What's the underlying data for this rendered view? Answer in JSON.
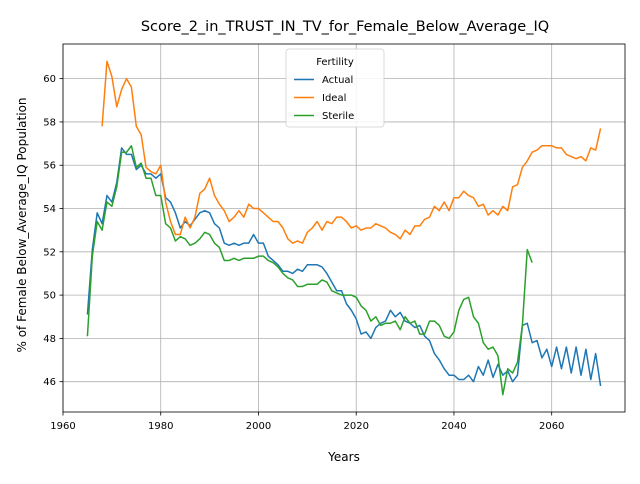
{
  "chart_data": {
    "type": "line",
    "title": "Score_2_in_TRUST_IN_TV_for_Female_Below_Average_IQ",
    "xlabel": "Years",
    "ylabel": "% of Female Below_Average_IQ Population",
    "xlim": [
      1960,
      2075
    ],
    "ylim": [
      44.6,
      61.6
    ],
    "xticks": [
      1960,
      1980,
      2000,
      2020,
      2040,
      2060
    ],
    "yticks": [
      46,
      48,
      50,
      52,
      54,
      56,
      58,
      60
    ],
    "grid": true,
    "legend": {
      "title": "Fertility",
      "position": "upper center"
    },
    "series": [
      {
        "name": "Actual",
        "color": "#1f77b4",
        "x": [
          1965,
          1966,
          1967,
          1968,
          1969,
          1970,
          1971,
          1972,
          1973,
          1974,
          1975,
          1976,
          1977,
          1978,
          1979,
          1980,
          1981,
          1982,
          1983,
          1984,
          1985,
          1986,
          1987,
          1988,
          1989,
          1990,
          1991,
          1992,
          1993,
          1994,
          1995,
          1996,
          1997,
          1998,
          1999,
          2000,
          2001,
          2002,
          2003,
          2004,
          2005,
          2006,
          2007,
          2008,
          2009,
          2010,
          2011,
          2012,
          2013,
          2014,
          2015,
          2016,
          2017,
          2018,
          2019,
          2020,
          2021,
          2022,
          2023,
          2024,
          2025,
          2026,
          2027,
          2028,
          2029,
          2030,
          2031,
          2032,
          2033,
          2034,
          2035,
          2036,
          2037,
          2038,
          2039,
          2040,
          2041,
          2042,
          2043,
          2044,
          2045,
          2046,
          2047,
          2048,
          2049,
          2050,
          2051,
          2052,
          2053,
          2054,
          2055,
          2056,
          2057,
          2058,
          2059,
          2060,
          2061,
          2062,
          2063,
          2064,
          2065,
          2066,
          2067,
          2068,
          2069,
          2070
        ],
        "y": [
          49.1,
          52.1,
          53.8,
          53.3,
          54.6,
          54.3,
          55.2,
          56.8,
          56.5,
          56.5,
          55.8,
          56.0,
          55.6,
          55.6,
          55.4,
          55.6,
          54.5,
          54.3,
          53.8,
          53.1,
          53.4,
          53.2,
          53.5,
          53.8,
          53.9,
          53.8,
          53.3,
          53.1,
          52.4,
          52.3,
          52.4,
          52.3,
          52.4,
          52.4,
          52.8,
          52.4,
          52.4,
          51.8,
          51.6,
          51.4,
          51.1,
          51.1,
          51.0,
          51.2,
          51.1,
          51.4,
          51.4,
          51.4,
          51.3,
          51.0,
          50.6,
          50.2,
          50.2,
          49.6,
          49.3,
          48.9,
          48.2,
          48.3,
          48.0,
          48.5,
          48.7,
          48.8,
          49.3,
          49.0,
          49.2,
          48.8,
          48.7,
          48.5,
          48.6,
          48.1,
          47.9,
          47.3,
          47.0,
          46.6,
          46.3,
          46.3,
          46.1,
          46.1,
          46.3,
          46.0,
          46.7,
          46.3,
          47.0,
          46.2,
          46.8,
          46.3,
          46.5,
          46.0,
          46.3,
          48.6,
          48.7,
          47.8,
          47.9,
          47.1,
          47.5,
          46.7,
          47.6,
          46.6,
          47.6,
          46.4,
          47.6,
          46.3,
          47.5,
          46.1,
          47.3,
          45.8
        ]
      },
      {
        "name": "Ideal",
        "color": "#ff7f0e",
        "x": [
          1968,
          1969,
          1970,
          1971,
          1972,
          1973,
          1974,
          1975,
          1976,
          1977,
          1978,
          1979,
          1980,
          1981,
          1982,
          1983,
          1984,
          1985,
          1986,
          1987,
          1988,
          1989,
          1990,
          1991,
          1992,
          1993,
          1994,
          1995,
          1996,
          1997,
          1998,
          1999,
          2000,
          2001,
          2002,
          2003,
          2004,
          2005,
          2006,
          2007,
          2008,
          2009,
          2010,
          2011,
          2012,
          2013,
          2014,
          2015,
          2016,
          2017,
          2018,
          2019,
          2020,
          2021,
          2022,
          2023,
          2024,
          2025,
          2026,
          2027,
          2028,
          2029,
          2030,
          2031,
          2032,
          2033,
          2034,
          2035,
          2036,
          2037,
          2038,
          2039,
          2040,
          2041,
          2042,
          2043,
          2044,
          2045,
          2046,
          2047,
          2048,
          2049,
          2050,
          2051,
          2052,
          2053,
          2054,
          2055,
          2056,
          2057,
          2058,
          2059,
          2060,
          2061,
          2062,
          2063,
          2064,
          2065,
          2066,
          2067,
          2068,
          2069,
          2070
        ],
        "y": [
          57.8,
          60.8,
          60.1,
          58.7,
          59.5,
          60.0,
          59.6,
          57.8,
          57.4,
          55.9,
          55.7,
          55.6,
          56.0,
          54.3,
          53.4,
          52.8,
          52.8,
          53.6,
          53.1,
          53.6,
          54.7,
          54.9,
          55.4,
          54.6,
          54.2,
          53.9,
          53.4,
          53.6,
          53.9,
          53.6,
          54.2,
          54.0,
          54.0,
          53.8,
          53.6,
          53.4,
          53.4,
          53.1,
          52.6,
          52.4,
          52.5,
          52.4,
          52.9,
          53.1,
          53.4,
          53.0,
          53.4,
          53.3,
          53.6,
          53.6,
          53.4,
          53.1,
          53.2,
          53.0,
          53.1,
          53.1,
          53.3,
          53.2,
          53.1,
          52.9,
          52.8,
          52.6,
          53.0,
          52.8,
          53.2,
          53.2,
          53.5,
          53.6,
          54.1,
          53.9,
          54.3,
          53.9,
          54.5,
          54.5,
          54.8,
          54.6,
          54.5,
          54.1,
          54.2,
          53.7,
          53.9,
          53.7,
          54.1,
          53.9,
          55.0,
          55.1,
          55.9,
          56.2,
          56.6,
          56.7,
          56.9,
          56.9,
          56.9,
          56.8,
          56.8,
          56.5,
          56.4,
          56.3,
          56.4,
          56.2,
          56.8,
          56.7,
          57.7
        ]
      },
      {
        "name": "Sterile",
        "color": "#2ca02c",
        "x": [
          1965,
          1966,
          1967,
          1968,
          1969,
          1970,
          1971,
          1972,
          1973,
          1974,
          1975,
          1976,
          1977,
          1978,
          1979,
          1980,
          1981,
          1982,
          1983,
          1984,
          1985,
          1986,
          1987,
          1988,
          1989,
          1990,
          1991,
          1992,
          1993,
          1994,
          1995,
          1996,
          1997,
          1998,
          1999,
          2000,
          2001,
          2002,
          2003,
          2004,
          2005,
          2006,
          2007,
          2008,
          2009,
          2010,
          2011,
          2012,
          2013,
          2014,
          2015,
          2016,
          2017,
          2018,
          2019,
          2020,
          2021,
          2022,
          2023,
          2024,
          2025,
          2026,
          2027,
          2028,
          2029,
          2030,
          2031,
          2032,
          2033,
          2034,
          2035,
          2036,
          2037,
          2038,
          2039,
          2040,
          2041,
          2042,
          2043,
          2044,
          2045,
          2046,
          2047,
          2048,
          2049,
          2050,
          2051,
          2052,
          2053,
          2054,
          2055,
          2056
        ],
        "y": [
          48.1,
          51.8,
          53.4,
          53.0,
          54.3,
          54.1,
          55.0,
          56.6,
          56.6,
          56.9,
          55.9,
          56.1,
          55.4,
          55.4,
          54.6,
          54.6,
          53.3,
          53.1,
          52.5,
          52.7,
          52.6,
          52.3,
          52.4,
          52.6,
          52.9,
          52.8,
          52.4,
          52.2,
          51.6,
          51.6,
          51.7,
          51.6,
          51.7,
          51.7,
          51.7,
          51.8,
          51.8,
          51.6,
          51.5,
          51.3,
          51.0,
          50.8,
          50.7,
          50.4,
          50.4,
          50.5,
          50.5,
          50.5,
          50.7,
          50.6,
          50.2,
          50.1,
          50.0,
          50.0,
          50.0,
          49.9,
          49.5,
          49.3,
          48.8,
          49.0,
          48.6,
          48.7,
          48.7,
          48.8,
          48.4,
          49.0,
          48.7,
          48.8,
          48.2,
          48.2,
          48.8,
          48.8,
          48.6,
          48.1,
          48.0,
          48.3,
          49.3,
          49.8,
          49.9,
          49.0,
          48.7,
          47.8,
          47.5,
          47.6,
          47.2,
          45.4,
          46.6,
          46.4,
          46.9,
          48.6,
          52.1,
          51.5
        ]
      }
    ]
  }
}
